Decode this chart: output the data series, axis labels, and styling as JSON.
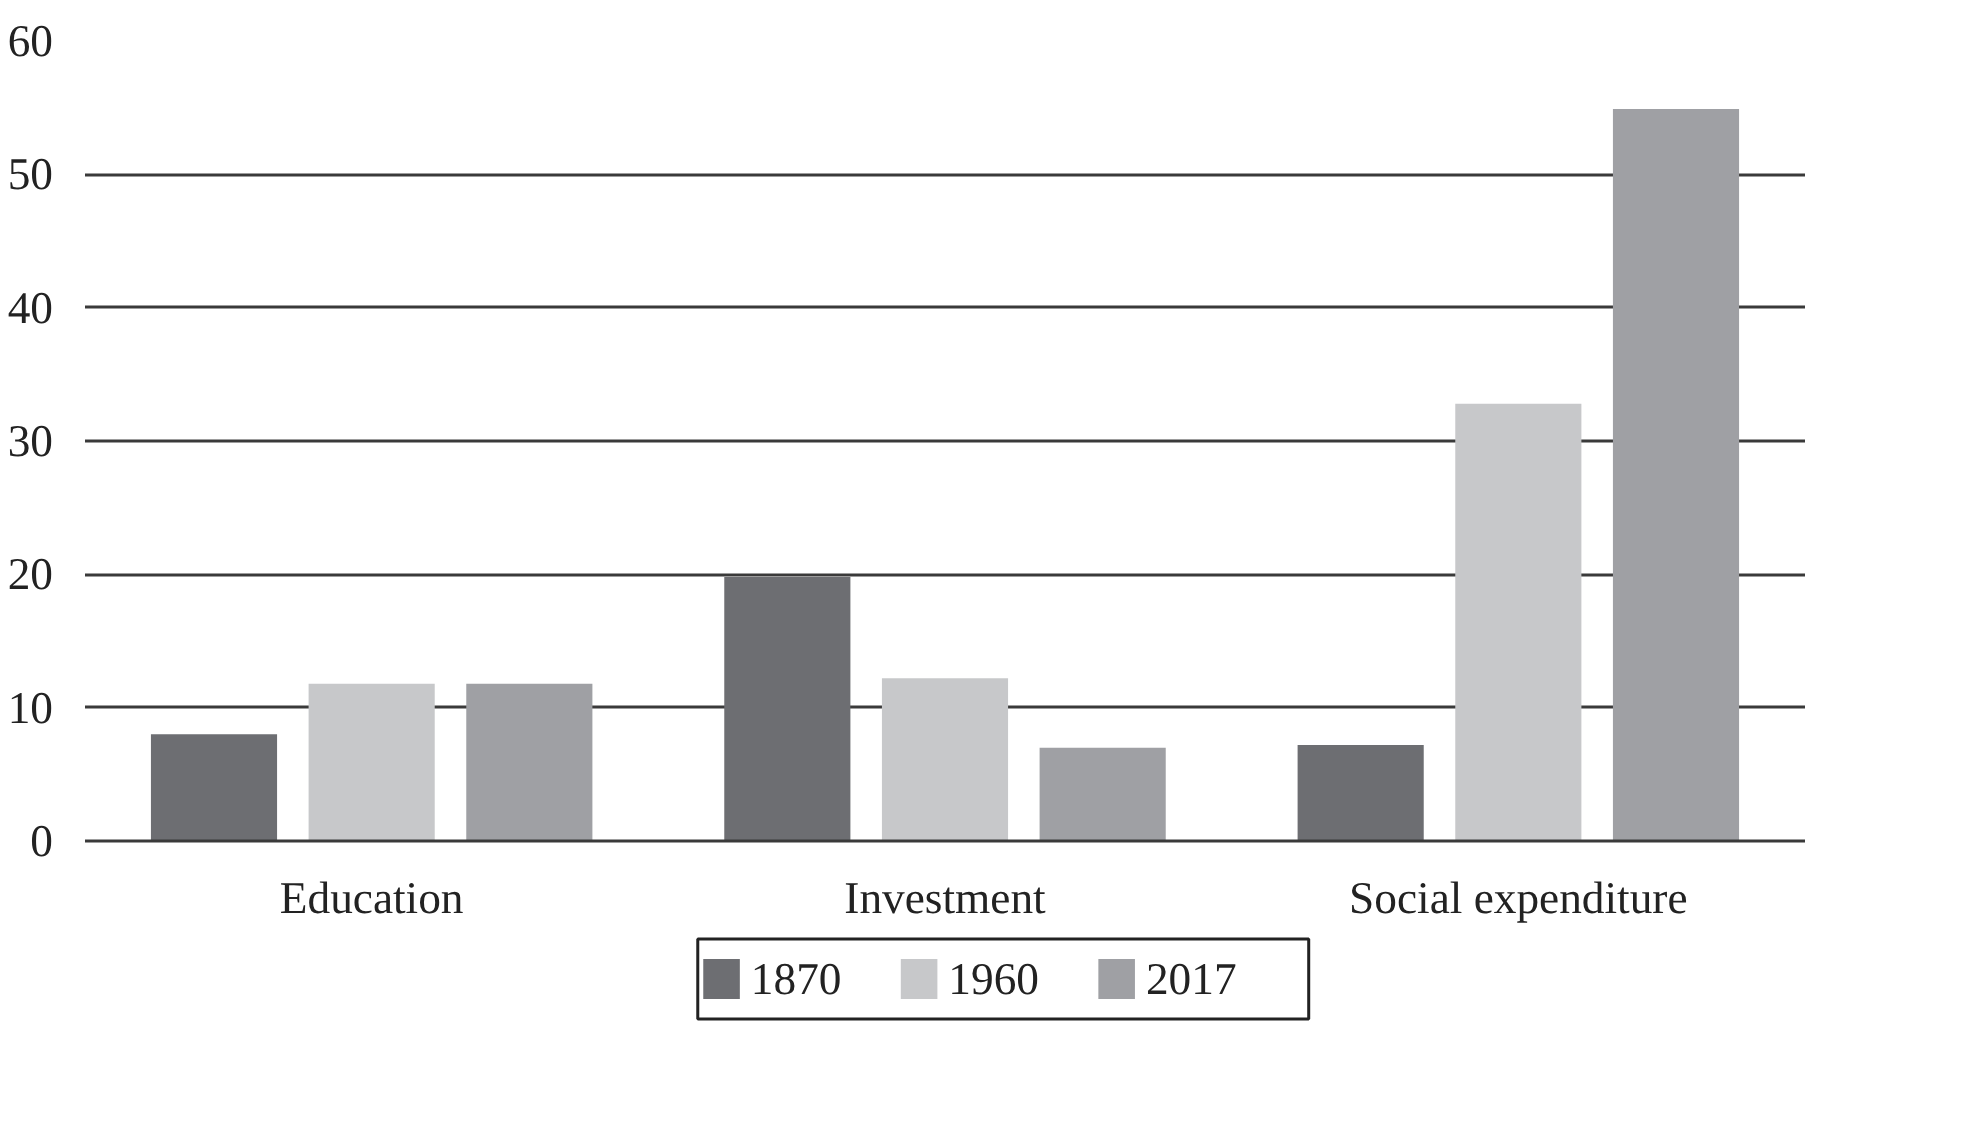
{
  "chart_data": {
    "type": "bar",
    "categories": [
      "Education",
      "Investment",
      "Social expenditure"
    ],
    "series": [
      {
        "name": "1870",
        "color": "#6d6e72",
        "values": [
          8.0,
          19.8,
          7.2
        ]
      },
      {
        "name": "1960",
        "color": "#c7c8ca",
        "values": [
          11.8,
          12.2,
          32.8
        ]
      },
      {
        "name": "2017",
        "color": "#9fa0a4",
        "values": [
          11.8,
          7.0,
          54.9
        ]
      }
    ],
    "ylim": [
      0,
      60
    ],
    "yticks": [
      0,
      10,
      20,
      30,
      40,
      50,
      60
    ],
    "grid": "y",
    "legend": "bottom"
  }
}
